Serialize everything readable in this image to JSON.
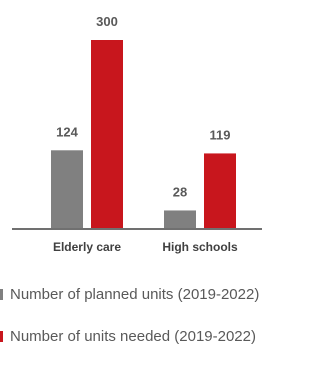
{
  "chart_data": {
    "type": "bar",
    "categories": [
      "Elderly care",
      "High schools"
    ],
    "series": [
      {
        "name": "Number of planned units (2019-2022)",
        "values": [
          124,
          28
        ]
      },
      {
        "name": "Number of units needed (2019-2022)",
        "values": [
          300,
          119
        ]
      }
    ],
    "ylim": [
      0,
      300
    ],
    "grid": false,
    "legend_position": "bottom",
    "colors": [
      "#808080",
      "#c8161d"
    ],
    "axis_color": "#404040"
  }
}
